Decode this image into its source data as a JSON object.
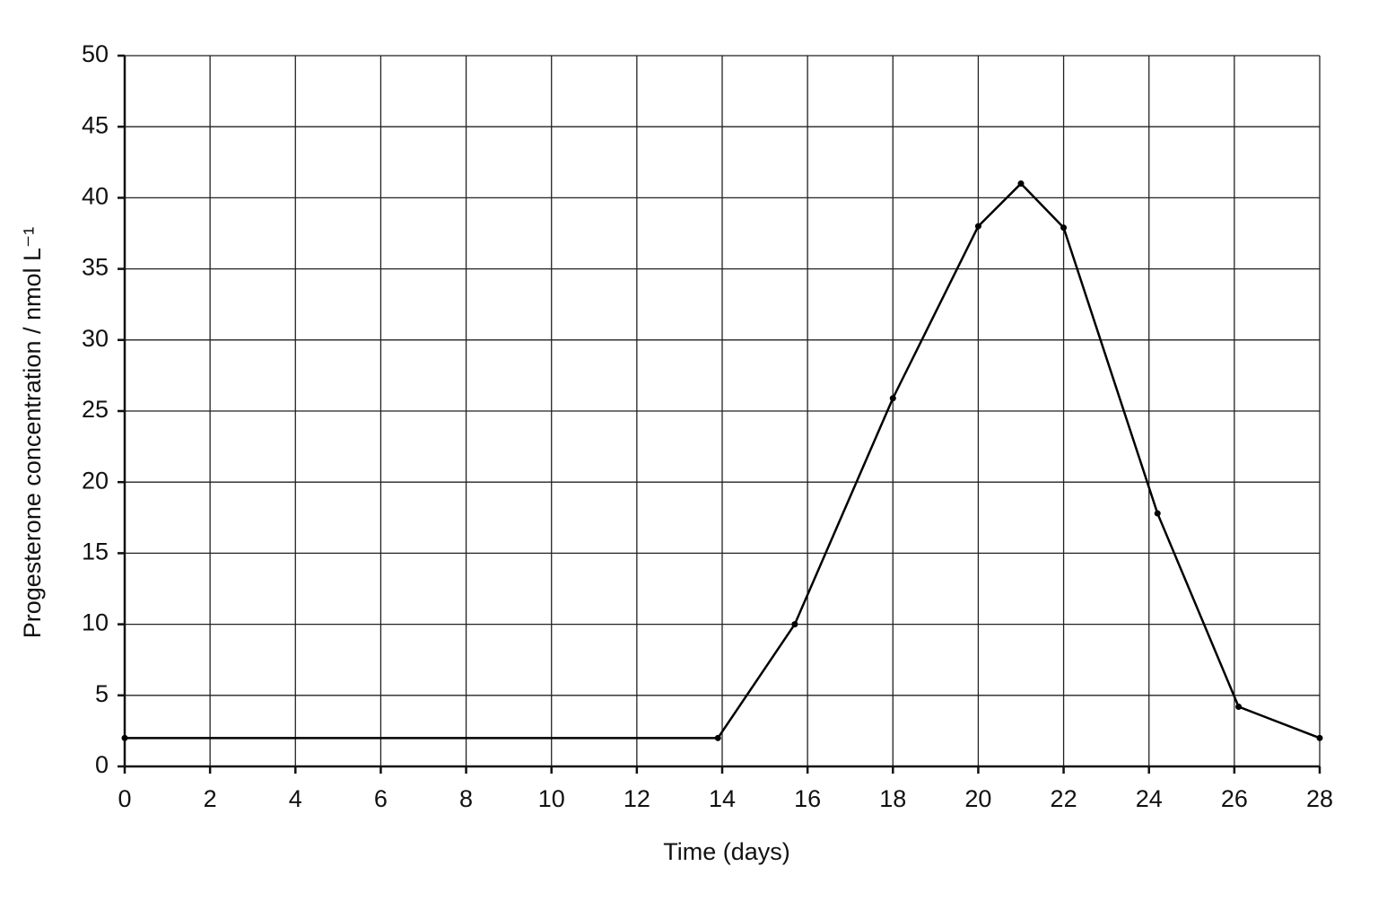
{
  "chart_data": {
    "type": "line",
    "x_label": "Time (days)",
    "y_label": "Progesterone concentration / nmol L⁻¹",
    "x": [
      0,
      13.9,
      15.7,
      18.0,
      20.0,
      21.0,
      22.0,
      24.2,
      26.1,
      28
    ],
    "series": [
      {
        "color": "#000000",
        "values": [
          2,
          2,
          10,
          25.9,
          38,
          41,
          37.9,
          17.8,
          4.2,
          2
        ]
      }
    ],
    "xlim": [
      0,
      28
    ],
    "xticks": [
      0,
      2,
      4,
      6,
      8,
      10,
      12,
      14,
      16,
      18,
      20,
      22,
      24,
      26,
      28
    ],
    "ylim": [
      0,
      50
    ],
    "yticks": [
      0,
      5,
      10,
      15,
      20,
      25,
      30,
      35,
      40,
      45,
      50
    ],
    "grid": true
  }
}
